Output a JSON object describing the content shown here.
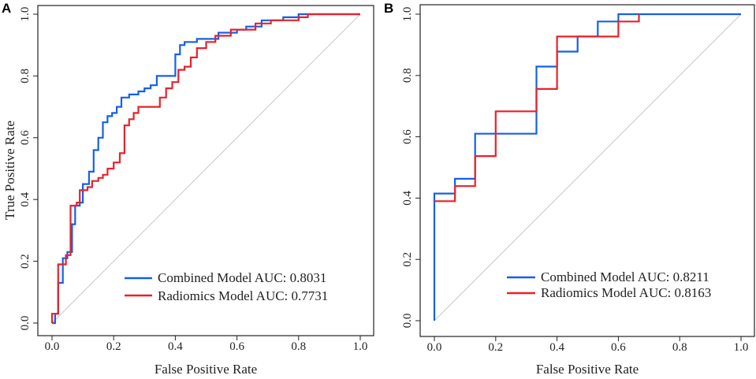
{
  "colors": {
    "combined": "#1560e8",
    "radiomics": "#e8222a",
    "diagonal": "#c8c8c8",
    "axis": "#222222"
  },
  "chart_data": [
    {
      "type": "line",
      "panel": "A",
      "xlabel": "False Positive Rate",
      "ylabel": "True Positive Rate",
      "xlim": [
        0,
        1
      ],
      "ylim": [
        0,
        1
      ],
      "xticks": [
        "0.0",
        "0.2",
        "0.4",
        "0.6",
        "0.8",
        "1.0"
      ],
      "yticks": [
        "0.0",
        "0.2",
        "0.4",
        "0.6",
        "0.8",
        "1.0"
      ],
      "grid": false,
      "legend": "bottom-right",
      "series": [
        {
          "name": "Combined Model AUC: 0.8031",
          "color_key": "combined",
          "points": [
            [
              0,
              0
            ],
            [
              0.01,
              0
            ],
            [
              0.01,
              0.03
            ],
            [
              0.02,
              0.03
            ],
            [
              0.02,
              0.13
            ],
            [
              0.035,
              0.13
            ],
            [
              0.035,
              0.21
            ],
            [
              0.05,
              0.21
            ],
            [
              0.05,
              0.23
            ],
            [
              0.065,
              0.23
            ],
            [
              0.065,
              0.32
            ],
            [
              0.075,
              0.32
            ],
            [
              0.075,
              0.38
            ],
            [
              0.09,
              0.38
            ],
            [
              0.09,
              0.39
            ],
            [
              0.1,
              0.39
            ],
            [
              0.1,
              0.45
            ],
            [
              0.12,
              0.45
            ],
            [
              0.12,
              0.49
            ],
            [
              0.135,
              0.49
            ],
            [
              0.135,
              0.56
            ],
            [
              0.15,
              0.56
            ],
            [
              0.15,
              0.6
            ],
            [
              0.165,
              0.6
            ],
            [
              0.165,
              0.65
            ],
            [
              0.18,
              0.65
            ],
            [
              0.18,
              0.67
            ],
            [
              0.195,
              0.67
            ],
            [
              0.195,
              0.68
            ],
            [
              0.21,
              0.68
            ],
            [
              0.21,
              0.7
            ],
            [
              0.225,
              0.7
            ],
            [
              0.225,
              0.73
            ],
            [
              0.25,
              0.73
            ],
            [
              0.25,
              0.74
            ],
            [
              0.28,
              0.74
            ],
            [
              0.28,
              0.75
            ],
            [
              0.3,
              0.75
            ],
            [
              0.3,
              0.76
            ],
            [
              0.32,
              0.76
            ],
            [
              0.32,
              0.77
            ],
            [
              0.34,
              0.77
            ],
            [
              0.34,
              0.8
            ],
            [
              0.4,
              0.8
            ],
            [
              0.4,
              0.87
            ],
            [
              0.415,
              0.87
            ],
            [
              0.415,
              0.9
            ],
            [
              0.43,
              0.9
            ],
            [
              0.43,
              0.91
            ],
            [
              0.47,
              0.91
            ],
            [
              0.47,
              0.92
            ],
            [
              0.54,
              0.92
            ],
            [
              0.54,
              0.94
            ],
            [
              0.6,
              0.94
            ],
            [
              0.6,
              0.95
            ],
            [
              0.63,
              0.95
            ],
            [
              0.63,
              0.96
            ],
            [
              0.68,
              0.96
            ],
            [
              0.68,
              0.98
            ],
            [
              0.75,
              0.98
            ],
            [
              0.75,
              0.99
            ],
            [
              0.8,
              0.99
            ],
            [
              0.8,
              1.0
            ],
            [
              1.0,
              1.0
            ]
          ]
        },
        {
          "name": "Radiomics Model AUC: 0.7731",
          "color_key": "radiomics",
          "points": [
            [
              0,
              0
            ],
            [
              0,
              0.03
            ],
            [
              0.02,
              0.03
            ],
            [
              0.02,
              0.19
            ],
            [
              0.045,
              0.19
            ],
            [
              0.045,
              0.22
            ],
            [
              0.06,
              0.22
            ],
            [
              0.06,
              0.38
            ],
            [
              0.08,
              0.38
            ],
            [
              0.08,
              0.39
            ],
            [
              0.09,
              0.39
            ],
            [
              0.09,
              0.43
            ],
            [
              0.115,
              0.43
            ],
            [
              0.115,
              0.44
            ],
            [
              0.13,
              0.44
            ],
            [
              0.13,
              0.46
            ],
            [
              0.15,
              0.46
            ],
            [
              0.15,
              0.47
            ],
            [
              0.165,
              0.47
            ],
            [
              0.165,
              0.48
            ],
            [
              0.18,
              0.48
            ],
            [
              0.18,
              0.5
            ],
            [
              0.2,
              0.5
            ],
            [
              0.2,
              0.52
            ],
            [
              0.22,
              0.52
            ],
            [
              0.22,
              0.55
            ],
            [
              0.235,
              0.55
            ],
            [
              0.235,
              0.64
            ],
            [
              0.25,
              0.64
            ],
            [
              0.25,
              0.66
            ],
            [
              0.265,
              0.66
            ],
            [
              0.265,
              0.68
            ],
            [
              0.28,
              0.68
            ],
            [
              0.28,
              0.7
            ],
            [
              0.35,
              0.7
            ],
            [
              0.35,
              0.73
            ],
            [
              0.37,
              0.73
            ],
            [
              0.37,
              0.76
            ],
            [
              0.39,
              0.76
            ],
            [
              0.39,
              0.78
            ],
            [
              0.41,
              0.78
            ],
            [
              0.41,
              0.82
            ],
            [
              0.43,
              0.82
            ],
            [
              0.43,
              0.83
            ],
            [
              0.45,
              0.83
            ],
            [
              0.45,
              0.86
            ],
            [
              0.47,
              0.86
            ],
            [
              0.47,
              0.89
            ],
            [
              0.5,
              0.89
            ],
            [
              0.5,
              0.91
            ],
            [
              0.53,
              0.91
            ],
            [
              0.53,
              0.93
            ],
            [
              0.58,
              0.93
            ],
            [
              0.58,
              0.95
            ],
            [
              0.66,
              0.95
            ],
            [
              0.66,
              0.97
            ],
            [
              0.71,
              0.97
            ],
            [
              0.71,
              0.98
            ],
            [
              0.8,
              0.98
            ],
            [
              0.8,
              0.99
            ],
            [
              0.83,
              0.99
            ],
            [
              0.83,
              1.0
            ],
            [
              1.0,
              1.0
            ]
          ]
        }
      ]
    },
    {
      "type": "line",
      "panel": "B",
      "xlabel": "False Positive Rate",
      "ylabel": "",
      "xlim": [
        0,
        1
      ],
      "ylim": [
        0,
        1
      ],
      "xticks": [
        "0.0",
        "0.2",
        "0.4",
        "0.6",
        "0.8",
        "1.0"
      ],
      "yticks": [
        "0.0",
        "0.2",
        "0.4",
        "0.6",
        "0.8",
        "1.0"
      ],
      "grid": false,
      "legend": "bottom-right",
      "series": [
        {
          "name": "Combined Model AUC: 0.8211",
          "color_key": "combined",
          "points": [
            [
              0,
              0
            ],
            [
              0,
              0.415
            ],
            [
              0.067,
              0.415
            ],
            [
              0.067,
              0.463
            ],
            [
              0.133,
              0.463
            ],
            [
              0.133,
              0.61
            ],
            [
              0.333,
              0.61
            ],
            [
              0.333,
              0.829
            ],
            [
              0.4,
              0.829
            ],
            [
              0.4,
              0.878
            ],
            [
              0.467,
              0.878
            ],
            [
              0.467,
              0.927
            ],
            [
              0.533,
              0.927
            ],
            [
              0.533,
              0.976
            ],
            [
              0.6,
              0.976
            ],
            [
              0.6,
              1.0
            ],
            [
              1.0,
              1.0
            ]
          ]
        },
        {
          "name": "Radiomics Model AUC: 0.8163",
          "color_key": "radiomics",
          "points": [
            [
              0,
              0.39
            ],
            [
              0.067,
              0.39
            ],
            [
              0.067,
              0.439
            ],
            [
              0.133,
              0.439
            ],
            [
              0.133,
              0.537
            ],
            [
              0.2,
              0.537
            ],
            [
              0.2,
              0.683
            ],
            [
              0.333,
              0.683
            ],
            [
              0.333,
              0.756
            ],
            [
              0.4,
              0.756
            ],
            [
              0.4,
              0.927
            ],
            [
              0.6,
              0.927
            ],
            [
              0.6,
              0.976
            ],
            [
              0.667,
              0.976
            ],
            [
              0.667,
              1.0
            ]
          ]
        }
      ]
    }
  ]
}
